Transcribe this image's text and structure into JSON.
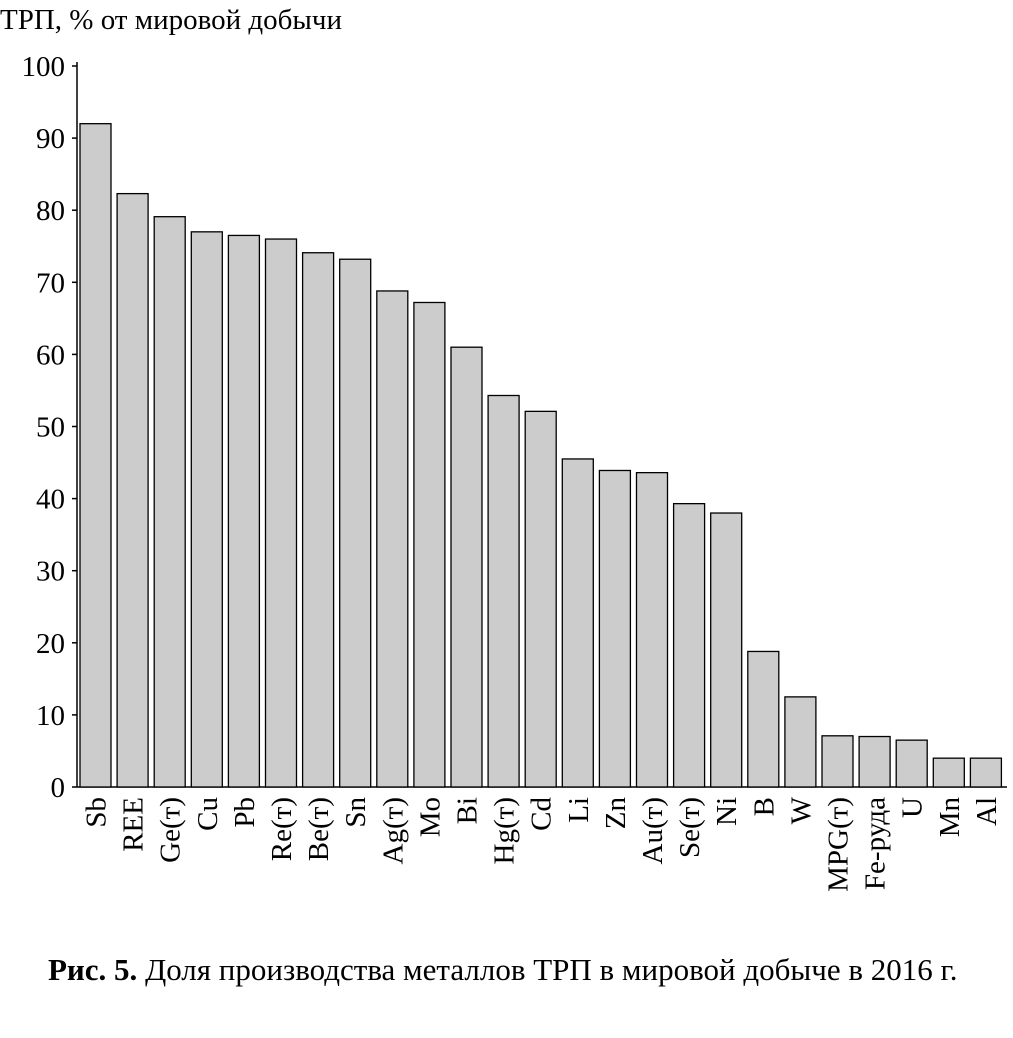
{
  "chart_data": {
    "type": "bar",
    "ylabel": "ТРП, % от мировой добычи",
    "xlabel": "",
    "ylim": [
      0,
      100
    ],
    "yticks": [
      0,
      10,
      20,
      30,
      40,
      50,
      60,
      70,
      80,
      90,
      100
    ],
    "grid": false,
    "bar_color": "#cccccc",
    "categories": [
      "Sb",
      "REE",
      "Ge(т)",
      "Cu",
      "Pb",
      "Re(т)",
      "Be(т)",
      "Sn",
      "Ag(т)",
      "Mo",
      "Bi",
      "Hg(т)",
      "Cd",
      "Li",
      "Zn",
      "Au(т)",
      "Se(т)",
      "Ni",
      "B",
      "W",
      "MPG(т)",
      "Fe-руда",
      "U",
      "Mn",
      "Al"
    ],
    "values": [
      92.0,
      82.3,
      79.1,
      77.0,
      76.5,
      76.0,
      74.1,
      73.2,
      68.8,
      67.2,
      61.0,
      54.3,
      52.1,
      45.5,
      43.9,
      43.6,
      39.3,
      38.0,
      18.8,
      12.5,
      7.1,
      7.0,
      6.5,
      4.0,
      4.0
    ]
  },
  "caption": {
    "label": "Рис. 5.",
    "text": " Доля производства металлов ТРП в мировой добыче в 2016 г."
  }
}
